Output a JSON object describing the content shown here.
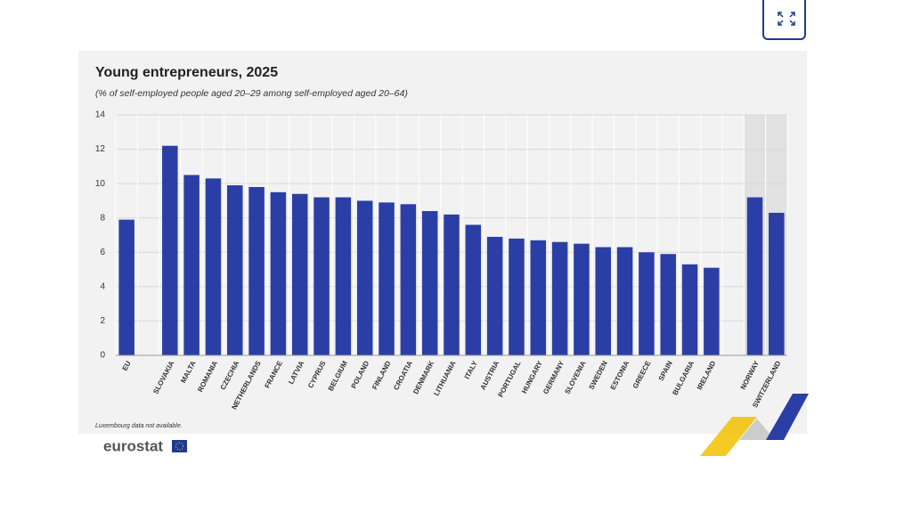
{
  "chart_data": {
    "type": "bar",
    "title": "Young entrepreneurs, 2025",
    "subtitle": "(% of self-employed people aged 20–29 among self-employed aged 20–64)",
    "categories": [
      "EU",
      null,
      "SLOVAKIA",
      "MALTA",
      "ROMANIA",
      "CZECHIA",
      "NETHERLANDS",
      "FRANCE",
      "LATVIA",
      "CYPRUS",
      "BELGIUM",
      "POLAND",
      "FINLAND",
      "CROATIA",
      "DENMARK",
      "LITHUANIA",
      "ITALY",
      "AUSTRIA",
      "PORTUGAL",
      "HUNGARY",
      "GERMANY",
      "SLOVENIA",
      "SWEDEN",
      "ESTONIA",
      "GREECE",
      "SPAIN",
      "BULGARIA",
      "IRELAND",
      null,
      "NORWAY",
      "SWITZERLAND"
    ],
    "values": [
      7.9,
      null,
      12.2,
      10.5,
      10.3,
      9.9,
      9.8,
      9.5,
      9.4,
      9.2,
      9.2,
      9.0,
      8.9,
      8.8,
      8.4,
      8.2,
      7.6,
      6.9,
      6.8,
      6.7,
      6.6,
      6.5,
      6.3,
      6.3,
      6.0,
      5.9,
      5.3,
      5.1,
      null,
      9.2,
      8.3
    ],
    "color": "#2b3ea6",
    "ylim": [
      0,
      14
    ],
    "yticks": [
      0,
      2,
      4,
      6,
      8,
      10,
      12,
      14
    ],
    "grid": true,
    "note": "Luxembourg data not available."
  },
  "logo": "eurostat"
}
